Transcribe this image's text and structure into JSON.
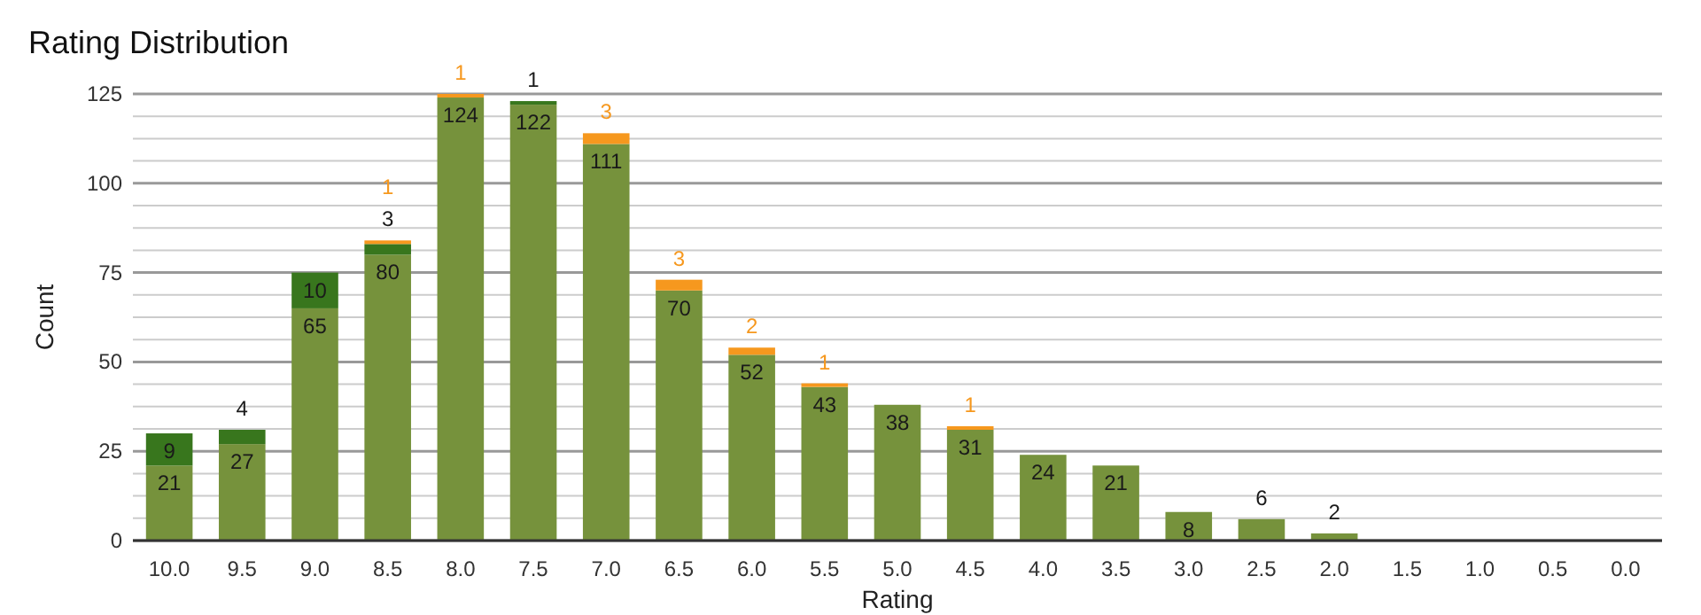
{
  "chart_data": {
    "type": "bar",
    "title": "Rating Distribution",
    "xlabel": "Rating",
    "ylabel": "Count",
    "stacked": true,
    "categories": [
      "10.0",
      "9.5",
      "9.0",
      "8.5",
      "8.0",
      "7.5",
      "7.0",
      "6.5",
      "6.0",
      "5.5",
      "5.0",
      "4.5",
      "4.0",
      "3.5",
      "3.0",
      "2.5",
      "2.0",
      "1.5",
      "1.0",
      "0.5",
      "0.0"
    ],
    "series": [
      {
        "color": "#76923c",
        "values": [
          21,
          27,
          65,
          80,
          124,
          122,
          111,
          70,
          52,
          43,
          38,
          31,
          24,
          21,
          8,
          6,
          2,
          0,
          0,
          0,
          0
        ],
        "value_labels": [
          "21",
          "27",
          "65",
          "80",
          "124",
          "122",
          "111",
          "70",
          "52",
          "43",
          "38",
          "31",
          "24",
          "21",
          "8",
          "6",
          "2",
          null,
          null,
          null,
          null
        ]
      },
      {
        "color": "#38761d",
        "values": [
          9,
          4,
          10,
          3,
          0,
          1,
          0,
          0,
          0,
          0,
          0,
          0,
          0,
          0,
          0,
          0,
          0,
          0,
          0,
          0,
          0
        ],
        "value_labels": [
          "9",
          "4",
          "10",
          "3",
          null,
          "1",
          null,
          null,
          null,
          null,
          null,
          null,
          null,
          null,
          null,
          null,
          null,
          null,
          null,
          null,
          null
        ]
      },
      {
        "color": "#f6981e",
        "values": [
          0,
          0,
          0,
          1,
          1,
          0,
          3,
          3,
          2,
          1,
          0,
          1,
          0,
          0,
          0,
          0,
          0,
          0,
          0,
          0,
          0
        ],
        "value_labels": [
          null,
          null,
          null,
          "1",
          "1",
          null,
          "3",
          "3",
          "2",
          "1",
          null,
          "1",
          null,
          null,
          null,
          null,
          null,
          null,
          null,
          null,
          null
        ]
      }
    ],
    "ylim": [
      0,
      125
    ],
    "yticks": [
      0,
      {
        "value": 6.25,
        "label": null
      },
      {
        "value": 12.5,
        "label": null
      },
      {
        "value": 18.75,
        "label": null
      },
      25,
      {
        "value": 31.25,
        "label": null
      },
      {
        "value": 37.5,
        "label": null
      },
      {
        "value": 43.75,
        "label": null
      },
      50,
      {
        "value": 56.25,
        "label": null
      },
      {
        "value": 62.5,
        "label": null
      },
      {
        "value": 68.75,
        "label": null
      },
      75,
      {
        "value": 81.25,
        "label": null
      },
      {
        "value": 87.5,
        "label": null
      },
      {
        "value": 93.75,
        "label": null
      },
      100,
      {
        "value": 106.25,
        "label": null
      },
      {
        "value": 112.5,
        "label": null
      },
      {
        "value": 118.75,
        "label": null
      },
      125
    ],
    "grid": "y"
  }
}
